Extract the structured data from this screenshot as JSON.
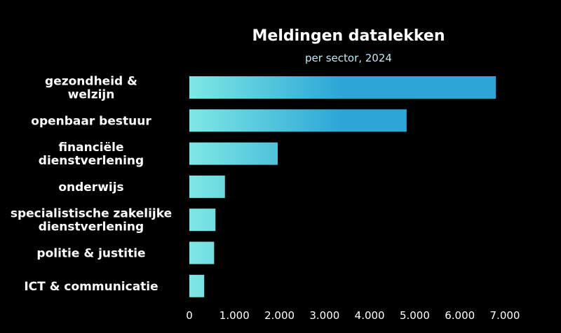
{
  "chart_data": {
    "type": "bar",
    "orientation": "horizontal",
    "title": "Meldingen datalekken",
    "subtitle": "per sector, 2024",
    "categories": [
      [
        "gezondheid &",
        "welzijn"
      ],
      [
        "openbaar bestuur"
      ],
      [
        "financiële",
        "dienstverlening"
      ],
      [
        "onderwijs"
      ],
      [
        "specialistische zakelijke",
        "dienstverlening"
      ],
      [
        "politie & justitie"
      ],
      [
        "ICT & communicatie"
      ]
    ],
    "values": [
      6800,
      4820,
      1960,
      790,
      580,
      550,
      330
    ],
    "xlim": [
      0,
      7000
    ],
    "xticks": [
      0,
      1000,
      2000,
      3000,
      4000,
      5000,
      6000,
      7000
    ],
    "xtick_labels": [
      "0",
      "1.000",
      "2.000",
      "3.000",
      "4.000",
      "5.000",
      "6.000",
      "7.000"
    ],
    "grid": false,
    "legend": "none",
    "colors": {
      "background": "#000000",
      "bar_start": "#7ee8e4",
      "bar_end": "#2ba6d6",
      "text": "#ffffff",
      "subtitle": "#bfe9f3"
    }
  }
}
